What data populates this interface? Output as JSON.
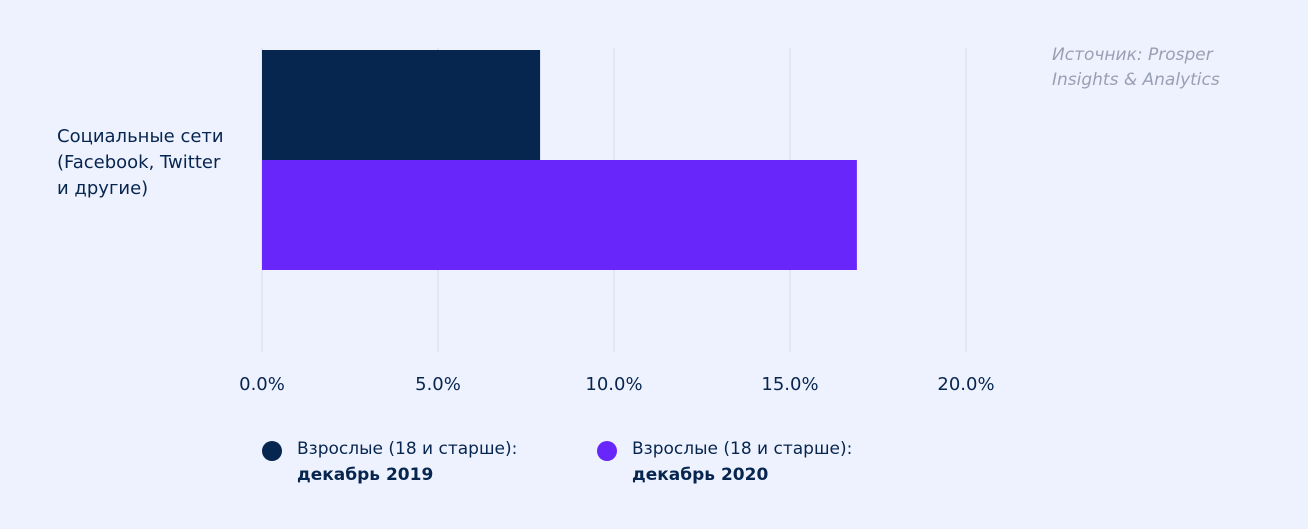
{
  "chart_data": {
    "type": "bar",
    "orientation": "horizontal",
    "categories": [
      "Социальные сети\n(Facebook, Twitter\nи другие)"
    ],
    "series": [
      {
        "name": "Взрослые (18 и старше): декабрь 2019",
        "name_line1": "Взрослые (18 и старше):",
        "name_line2": "декабрь 2019",
        "color": "#06254f",
        "values": [
          7.9
        ]
      },
      {
        "name": "Взрослые (18 и старше): декабрь 2020",
        "name_line1": "Взрослые (18 и старше):",
        "name_line2": "декабрь 2020",
        "color": "#6826fb",
        "values": [
          16.9
        ]
      }
    ],
    "xlim": [
      0,
      20
    ],
    "xticks": [
      0,
      5,
      10,
      15,
      20
    ],
    "xtick_labels": [
      "0.0%",
      "5.0%",
      "10.0%",
      "15.0%",
      "20.0%"
    ],
    "grid": true,
    "legend_position": "bottom",
    "annotation": "Источник: Prosper Insights & Analytics"
  }
}
